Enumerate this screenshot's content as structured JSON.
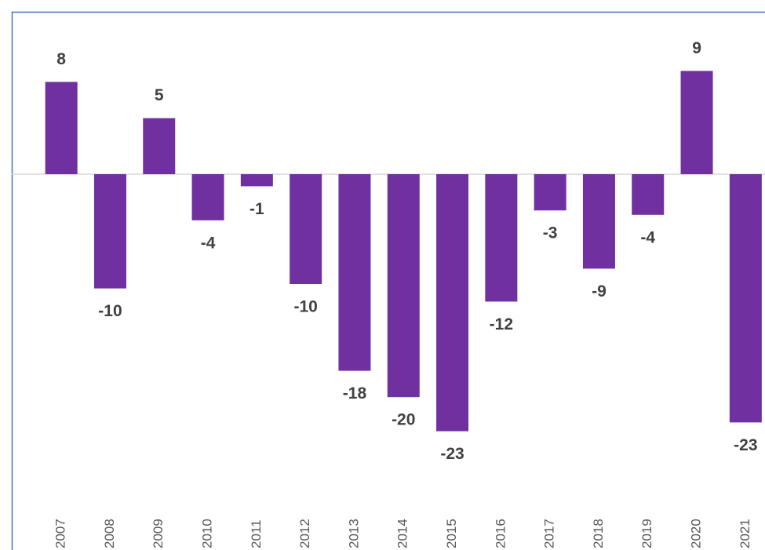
{
  "chart_data": {
    "type": "bar",
    "categories": [
      "2007",
      "2008",
      "2009",
      "2010",
      "2011",
      "2012",
      "2013",
      "2014",
      "2015",
      "2016",
      "2017",
      "2018",
      "2019",
      "2020",
      "2021"
    ],
    "values": [
      8.4,
      -10.4,
      5.1,
      -4.2,
      -1.1,
      -10.0,
      -17.9,
      -20.3,
      -23.4,
      -11.6,
      -3.3,
      -8.6,
      -3.7,
      9.4,
      -22.6
    ],
    "value_labels": [
      "8",
      "-10",
      "5",
      "-4",
      "-1",
      "-10",
      "-18",
      "-20",
      "-23",
      "-12",
      "-3",
      "-9",
      "-4",
      "9",
      "-23"
    ],
    "color": "#7030a0",
    "ylim": [
      -34,
      16
    ]
  }
}
